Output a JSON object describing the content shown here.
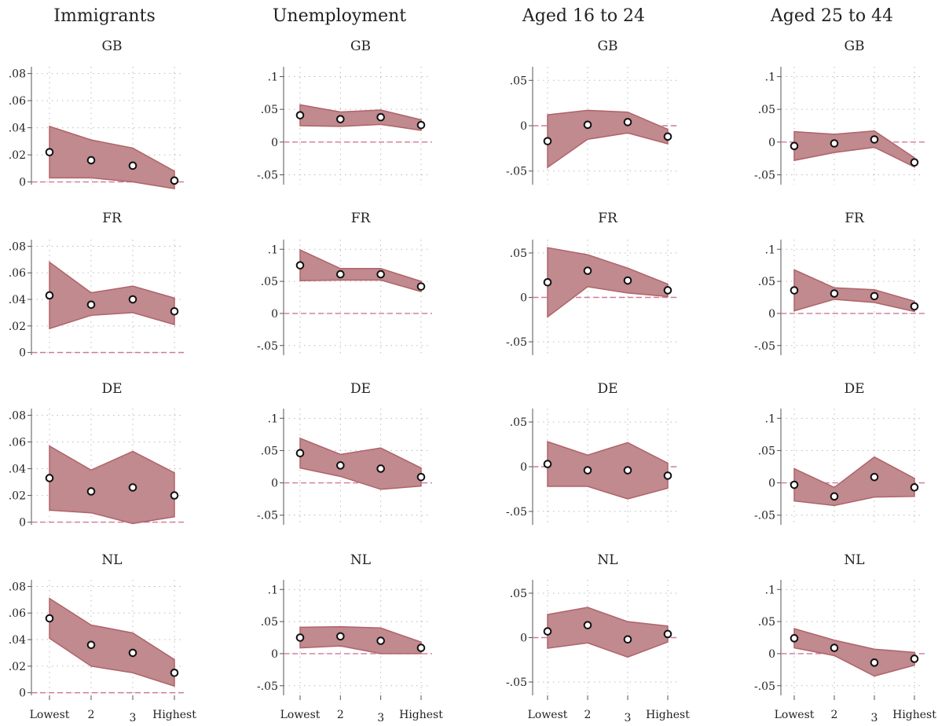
{
  "chart_data": {
    "type": "area",
    "x_categories": [
      "Lowest",
      "2",
      "3",
      "Highest"
    ],
    "columns": [
      {
        "title": "Immigrants",
        "yticks": [
          0,
          0.02,
          0.04,
          0.06,
          0.08
        ],
        "ytick_labels": [
          "0",
          ".02",
          ".04",
          ".06",
          ".08"
        ],
        "ylim": [
          -0.002,
          0.085
        ],
        "panels": [
          {
            "title": "GB",
            "point": [
              0.022,
              0.016,
              0.012,
              0.001
            ],
            "lower": [
              0.003,
              0.003,
              0.0,
              -0.005
            ],
            "upper": [
              0.041,
              0.031,
              0.025,
              0.008
            ]
          },
          {
            "title": "FR",
            "point": [
              0.043,
              0.036,
              0.04,
              0.031
            ],
            "lower": [
              0.018,
              0.028,
              0.03,
              0.021
            ],
            "upper": [
              0.068,
              0.045,
              0.05,
              0.041
            ]
          },
          {
            "title": "DE",
            "point": [
              0.033,
              0.023,
              0.026,
              0.02
            ],
            "lower": [
              0.009,
              0.007,
              -0.001,
              0.004
            ],
            "upper": [
              0.057,
              0.039,
              0.053,
              0.037
            ]
          },
          {
            "title": "NL",
            "point": [
              0.056,
              0.036,
              0.03,
              0.015
            ],
            "lower": [
              0.041,
              0.02,
              0.015,
              0.005
            ],
            "upper": [
              0.071,
              0.051,
              0.045,
              0.025
            ]
          }
        ]
      },
      {
        "title": "Unemployment",
        "yticks": [
          -0.05,
          0,
          0.05,
          0.1
        ],
        "ytick_labels": [
          "-.05",
          "0",
          ".05",
          ".1"
        ],
        "ylim": [
          -0.065,
          0.115
        ],
        "panels": [
          {
            "title": "GB",
            "point": [
              0.041,
              0.035,
              0.038,
              0.026
            ],
            "lower": [
              0.025,
              0.024,
              0.027,
              0.018
            ],
            "upper": [
              0.057,
              0.046,
              0.049,
              0.034
            ]
          },
          {
            "title": "FR",
            "point": [
              0.075,
              0.061,
              0.061,
              0.042
            ],
            "lower": [
              0.051,
              0.052,
              0.052,
              0.034
            ],
            "upper": [
              0.099,
              0.07,
              0.07,
              0.05
            ]
          },
          {
            "title": "DE",
            "point": [
              0.046,
              0.027,
              0.022,
              0.009
            ],
            "lower": [
              0.023,
              0.01,
              -0.01,
              -0.005
            ],
            "upper": [
              0.069,
              0.044,
              0.054,
              0.023
            ]
          },
          {
            "title": "NL",
            "point": [
              0.025,
              0.027,
              0.02,
              0.009
            ],
            "lower": [
              0.009,
              0.012,
              0.0,
              0.0
            ],
            "upper": [
              0.041,
              0.042,
              0.04,
              0.018
            ]
          }
        ]
      },
      {
        "title": "Aged 16 to 24",
        "yticks": [
          -0.05,
          0,
          0.05
        ],
        "ytick_labels": [
          "-.05",
          "0",
          ".05"
        ],
        "ylim": [
          -0.065,
          0.065
        ],
        "panels": [
          {
            "title": "GB",
            "point": [
              -0.017,
              0.001,
              0.004,
              -0.012
            ],
            "lower": [
              -0.046,
              -0.015,
              -0.008,
              -0.02
            ],
            "upper": [
              0.012,
              0.017,
              0.015,
              -0.004
            ]
          },
          {
            "title": "FR",
            "point": [
              0.017,
              0.03,
              0.019,
              0.008
            ],
            "lower": [
              -0.022,
              0.012,
              0.005,
              0.001
            ],
            "upper": [
              0.056,
              0.048,
              0.033,
              0.015
            ]
          },
          {
            "title": "DE",
            "point": [
              0.003,
              -0.004,
              -0.004,
              -0.01
            ],
            "lower": [
              -0.022,
              -0.022,
              -0.036,
              -0.024
            ],
            "upper": [
              0.028,
              0.013,
              0.027,
              0.004
            ]
          },
          {
            "title": "NL",
            "point": [
              0.007,
              0.014,
              -0.002,
              0.004
            ],
            "lower": [
              -0.012,
              -0.006,
              -0.022,
              -0.005
            ],
            "upper": [
              0.026,
              0.034,
              0.018,
              0.013
            ]
          }
        ]
      },
      {
        "title": "Aged 25 to 44",
        "yticks": [
          -0.05,
          0,
          0.05,
          0.1
        ],
        "ytick_labels": [
          "-.05",
          "0",
          ".05",
          ".1"
        ],
        "ylim": [
          -0.065,
          0.115
        ],
        "panels": [
          {
            "title": "GB",
            "point": [
              -0.006,
              -0.002,
              0.004,
              -0.031
            ],
            "lower": [
              -0.028,
              -0.016,
              -0.008,
              -0.038
            ],
            "upper": [
              0.016,
              0.012,
              0.017,
              -0.024
            ]
          },
          {
            "title": "FR",
            "point": [
              0.036,
              0.031,
              0.027,
              0.011
            ],
            "lower": [
              0.004,
              0.022,
              0.017,
              0.003
            ],
            "upper": [
              0.068,
              0.04,
              0.037,
              0.019
            ]
          },
          {
            "title": "DE",
            "point": [
              -0.003,
              -0.021,
              0.009,
              -0.007
            ],
            "lower": [
              -0.028,
              -0.035,
              -0.022,
              -0.021
            ],
            "upper": [
              0.022,
              -0.007,
              0.04,
              0.007
            ]
          },
          {
            "title": "NL",
            "point": [
              0.024,
              0.009,
              -0.014,
              -0.008
            ],
            "lower": [
              0.009,
              -0.003,
              -0.035,
              -0.018
            ],
            "upper": [
              0.039,
              0.021,
              0.007,
              0.002
            ]
          }
        ]
      }
    ]
  }
}
